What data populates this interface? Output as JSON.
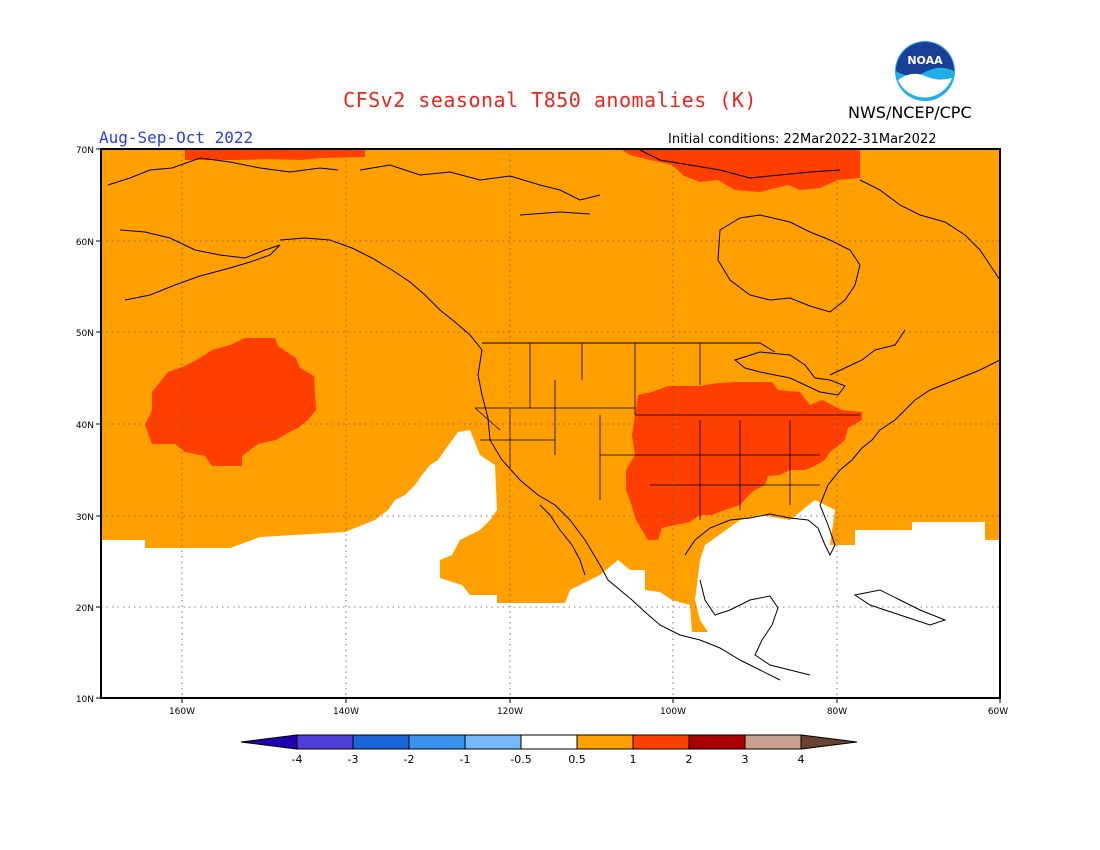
{
  "title": "CFSv2 seasonal T850 anomalies (K)",
  "season": "Aug-Sep-Oct 2022",
  "organization": "NWS/NCEP/CPC",
  "logo_text": "NOAA",
  "initial_conditions": "Initial conditions: 22Mar2022-31Mar2022",
  "map": {
    "projection": "lat-lon",
    "lat_range": [
      10,
      70
    ],
    "lon_range": [
      -170,
      -60
    ],
    "lat_labels": [
      "70N",
      "60N",
      "50N",
      "40N",
      "30N",
      "20N",
      "10N"
    ],
    "lon_labels": [
      "160W",
      "140W",
      "120W",
      "100W",
      "80W",
      "60W"
    ],
    "grid": "dotted"
  },
  "anomaly_regions": [
    {
      "level": "0.5 to 1",
      "color": "#ffa000",
      "area": "northern Pacific, Alaska, Canada, United States, northern Mexico, western Atlantic north of ~28N"
    },
    {
      "level": "1 to 2",
      "color": "#ff3f00",
      "area": "central Pacific near 40N 155W"
    },
    {
      "level": "1 to 2",
      "color": "#ff3f00",
      "area": "central and eastern United States"
    },
    {
      "level": "1 to 2",
      "color": "#ff3f00",
      "area": "northern Quebec / Ungava"
    },
    {
      "level": "1 to 2",
      "color": "#ff3f00",
      "area": "Arctic coast near 70N 160W"
    },
    {
      "level": "-0.5 to 0.5",
      "color": "#ffffff",
      "area": "tropics and subtropics south of ~28N, eastern Pacific off California"
    }
  ],
  "colorbar": {
    "colors": [
      "#1f00b0",
      "#4f3fd8",
      "#1a66d8",
      "#3a93f0",
      "#78b8f6",
      "#ffffff",
      "#ffa000",
      "#ff3f00",
      "#a80000",
      "#c9a08f",
      "#6b4431"
    ],
    "labels": [
      "-4",
      "-3",
      "-2",
      "-1",
      "-0.5",
      "0.5",
      "1",
      "2",
      "3",
      "4"
    ]
  }
}
